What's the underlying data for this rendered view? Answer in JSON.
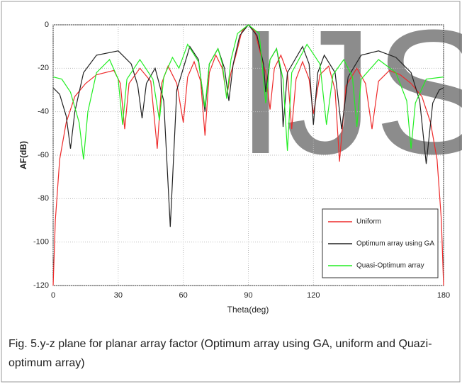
{
  "watermark": "IJS",
  "chart_data": {
    "type": "line",
    "xlabel": "Theta(deg)",
    "ylabel": "AF(dB)",
    "xlim": [
      0,
      180
    ],
    "ylim": [
      -120,
      0
    ],
    "xticks": [
      0,
      30,
      60,
      90,
      120,
      180
    ],
    "yticks": [
      0,
      -20,
      -40,
      -60,
      -80,
      -100,
      -120
    ],
    "grid": true,
    "legend": "lower right",
    "series": [
      {
        "name": "Uniform",
        "color": "#ee2a2a",
        "x": [
          0,
          1,
          3,
          6,
          10,
          15,
          20,
          28,
          31,
          33,
          35,
          40,
          45,
          48,
          50,
          53,
          57,
          60,
          62,
          65,
          68,
          70,
          72,
          75,
          78,
          80,
          82,
          84,
          87,
          90,
          93,
          96,
          98,
          100,
          102,
          105,
          108,
          110,
          112,
          115,
          118,
          120,
          123,
          127,
          130,
          132,
          135,
          140,
          144,
          147,
          150,
          155,
          160,
          165,
          170,
          174,
          177,
          179,
          180
        ],
        "values": [
          -120,
          -90,
          -62,
          -45,
          -33,
          -27,
          -23,
          -21,
          -27,
          -48,
          -27,
          -20,
          -26,
          -57,
          -27,
          -19,
          -27,
          -45,
          -24,
          -17,
          -26,
          -51,
          -22,
          -14,
          -20,
          -33,
          -22,
          -15,
          -3,
          0,
          -3,
          -15,
          -22,
          -39,
          -20,
          -14,
          -22,
          -48,
          -25,
          -17,
          -25,
          -41,
          -23,
          -19,
          -30,
          -63,
          -28,
          -20,
          -27,
          -48,
          -26,
          -21,
          -23,
          -27,
          -33,
          -45,
          -62,
          -90,
          -120
        ]
      },
      {
        "name": "Optimum array using GA",
        "color": "#222222",
        "x": [
          0,
          3,
          6,
          8,
          10,
          14,
          20,
          30,
          36,
          39,
          41,
          43,
          47,
          51,
          54,
          57,
          63,
          67,
          70,
          72,
          76,
          79,
          81,
          83,
          86,
          90,
          94,
          97,
          98,
          100,
          103,
          105,
          106,
          108,
          115,
          118,
          120,
          122,
          125,
          130,
          133,
          136,
          142,
          150,
          158,
          165,
          169,
          172,
          175,
          178,
          180
        ],
        "values": [
          -29,
          -32,
          -42,
          -57,
          -40,
          -22,
          -14,
          -12,
          -18,
          -28,
          -43,
          -27,
          -20,
          -35,
          -93,
          -30,
          -10,
          -16,
          -40,
          -18,
          -11,
          -20,
          -35,
          -18,
          -5,
          0,
          -5,
          -18,
          -31,
          -16,
          -11,
          -22,
          -47,
          -22,
          -10,
          -18,
          -46,
          -22,
          -14,
          -22,
          -48,
          -24,
          -14,
          -12,
          -15,
          -22,
          -35,
          -64,
          -36,
          -30,
          -29
        ]
      },
      {
        "name": "Quasi-Optimum array",
        "color": "#22ee22",
        "x": [
          0,
          4,
          8,
          12,
          14,
          16,
          20,
          26,
          30,
          32,
          34,
          40,
          46,
          49,
          51,
          55,
          58,
          62,
          67,
          70,
          72,
          76,
          78,
          80,
          82,
          85,
          90,
          95,
          98,
          100,
          103,
          106,
          108,
          110,
          117,
          123,
          126,
          129,
          134,
          138,
          140,
          142,
          150,
          158,
          163,
          165,
          167,
          172,
          180
        ],
        "values": [
          -24,
          -25,
          -31,
          -45,
          -62,
          -40,
          -22,
          -16,
          -25,
          -46,
          -25,
          -16,
          -25,
          -44,
          -24,
          -15,
          -20,
          -9,
          -17,
          -38,
          -18,
          -11,
          -18,
          -34,
          -16,
          -4,
          0,
          -4,
          -36,
          -16,
          -11,
          -25,
          -58,
          -22,
          -9,
          -18,
          -46,
          -23,
          -16,
          -24,
          -47,
          -25,
          -16,
          -22,
          -35,
          -57,
          -36,
          -25,
          -24
        ]
      }
    ],
    "caption": "Fig. 5.y-z plane for planar array factor (Optimum array using GA, uniform and Quazi-optimum array)"
  }
}
